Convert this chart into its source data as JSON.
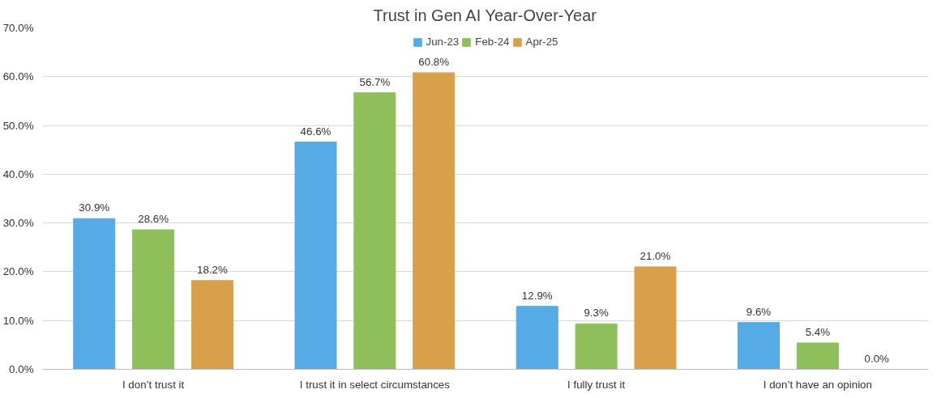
{
  "chart_data": {
    "type": "bar",
    "title": "Trust in Gen AI Year-Over-Year",
    "categories": [
      "I don’t trust it",
      "I trust it in select circumstances",
      "I fully trust it",
      "I don’t have an opinion"
    ],
    "series": [
      {
        "name": "Jun-23",
        "color": "#56aae6",
        "values": [
          30.9,
          46.6,
          12.9,
          9.6
        ],
        "value_labels": [
          "30.9%",
          "46.6%",
          "12.9%",
          "9.6%"
        ]
      },
      {
        "name": "Feb-24",
        "color": "#8fbf5a",
        "values": [
          28.6,
          56.7,
          9.3,
          5.4
        ],
        "value_labels": [
          "28.6%",
          "56.7%",
          "9.3%",
          "5.4%"
        ]
      },
      {
        "name": "Apr-25",
        "color": "#d9a04a",
        "values": [
          18.2,
          60.8,
          21.0,
          0.0
        ],
        "value_labels": [
          "18.2%",
          "60.8%",
          "21.0%",
          "0.0%"
        ]
      }
    ],
    "ylim": [
      0,
      70
    ],
    "yticks": [
      {
        "value": 0,
        "label": "0.0%"
      },
      {
        "value": 10,
        "label": "10.0%"
      },
      {
        "value": 20,
        "label": "20.0%"
      },
      {
        "value": 30,
        "label": "30.0%"
      },
      {
        "value": 40,
        "label": "40.0%"
      },
      {
        "value": 50,
        "label": "50.0%"
      },
      {
        "value": 60,
        "label": "60.0%"
      },
      {
        "value": 70,
        "label": "70.0%"
      }
    ],
    "grid": "y",
    "legend": "top"
  }
}
